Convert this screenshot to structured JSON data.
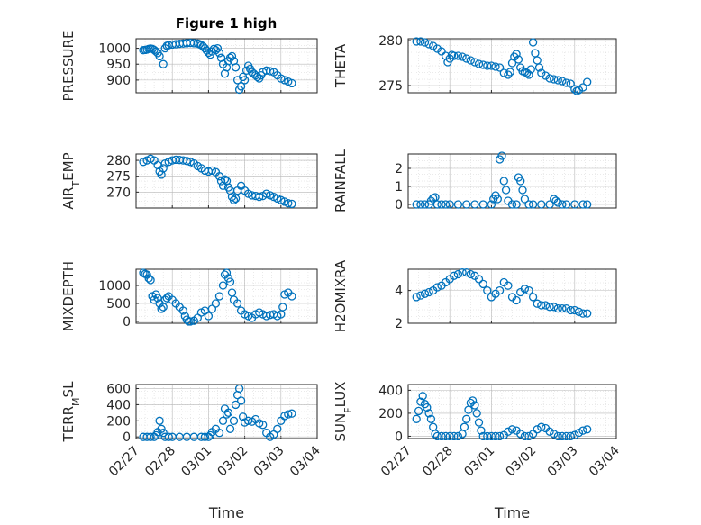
{
  "title": "Figure 1 high",
  "marker_color": "#0072BD",
  "x_tick_labels": [
    "02/27",
    "02/28",
    "03/01",
    "03/02",
    "03/03",
    "03/04"
  ],
  "x_label": "Time",
  "chart_data": [
    {
      "type": "scatter",
      "title": "Figure 1 high",
      "ylabel": "PRESSURE",
      "xlabel": "",
      "ylim": [
        860,
        1030
      ],
      "yticks": [
        900,
        950,
        1000
      ],
      "grid": true,
      "x": [
        0.2,
        0.25,
        0.3,
        0.35,
        0.4,
        0.45,
        0.5,
        0.55,
        0.6,
        0.65,
        0.75,
        0.8,
        0.85,
        0.9,
        1.0,
        1.1,
        1.2,
        1.3,
        1.4,
        1.5,
        1.6,
        1.7,
        1.75,
        1.8,
        1.85,
        1.9,
        1.95,
        2.0,
        2.05,
        2.1,
        2.15,
        2.2,
        2.25,
        2.3,
        2.35,
        2.4,
        2.45,
        2.5,
        2.55,
        2.6,
        2.65,
        2.7,
        2.75,
        2.8,
        2.85,
        2.9,
        2.95,
        3.0,
        3.05,
        3.1,
        3.15,
        3.2,
        3.25,
        3.3,
        3.35,
        3.4,
        3.45,
        3.5,
        3.6,
        3.7,
        3.8,
        3.9,
        4.0,
        4.1,
        4.2,
        4.3
      ],
      "y": [
        994,
        995,
        996,
        998,
        999,
        998,
        995,
        990,
        985,
        975,
        950,
        1000,
        1008,
        1010,
        1012,
        1013,
        1014,
        1015,
        1016,
        1017,
        1016,
        1015,
        1013,
        1010,
        1006,
        1000,
        993,
        986,
        980,
        990,
        998,
        994,
        1000,
        985,
        970,
        950,
        920,
        940,
        960,
        970,
        975,
        960,
        940,
        900,
        870,
        880,
        910,
        900,
        930,
        945,
        935,
        925,
        920,
        915,
        910,
        905,
        915,
        925,
        930,
        928,
        925,
        915,
        905,
        900,
        895,
        890
      ]
    },
    {
      "type": "scatter",
      "title": "",
      "ylabel": "THETA",
      "xlabel": "",
      "ylim": [
        274.2,
        280.2
      ],
      "yticks": [
        275,
        280
      ],
      "grid": true,
      "x": [
        0.2,
        0.3,
        0.4,
        0.5,
        0.6,
        0.7,
        0.8,
        0.9,
        0.95,
        1.0,
        1.05,
        1.1,
        1.2,
        1.3,
        1.4,
        1.5,
        1.6,
        1.7,
        1.8,
        1.9,
        2.0,
        2.1,
        2.2,
        2.3,
        2.4,
        2.45,
        2.5,
        2.55,
        2.6,
        2.65,
        2.7,
        2.75,
        2.8,
        2.85,
        2.9,
        2.95,
        3.0,
        3.05,
        3.1,
        3.15,
        3.2,
        3.3,
        3.4,
        3.5,
        3.6,
        3.7,
        3.8,
        3.9,
        4.0,
        4.05,
        4.1,
        4.2,
        4.3
      ],
      "y": [
        279.9,
        279.9,
        279.8,
        279.6,
        279.4,
        279.1,
        278.8,
        278.3,
        277.6,
        278.0,
        278.4,
        278.3,
        278.3,
        278.2,
        278.0,
        277.8,
        277.6,
        277.4,
        277.3,
        277.2,
        277.2,
        277.1,
        277.0,
        276.4,
        276.2,
        276.5,
        277.5,
        278.2,
        278.5,
        277.9,
        277.0,
        276.6,
        276.5,
        276.4,
        276.2,
        276.8,
        279.8,
        278.6,
        277.8,
        277.0,
        276.4,
        276.1,
        275.8,
        275.7,
        275.6,
        275.5,
        275.3,
        275.2,
        274.6,
        274.4,
        274.5,
        274.8,
        275.4
      ]
    },
    {
      "type": "scatter",
      "title": "",
      "ylabel": "AIR_TEMP",
      "xlabel": "",
      "ylim": [
        265,
        282
      ],
      "yticks": [
        270,
        275,
        280
      ],
      "grid": true,
      "x": [
        0.2,
        0.3,
        0.4,
        0.5,
        0.6,
        0.65,
        0.7,
        0.75,
        0.8,
        0.9,
        1.0,
        1.1,
        1.2,
        1.3,
        1.4,
        1.5,
        1.6,
        1.7,
        1.8,
        1.9,
        2.0,
        2.1,
        2.2,
        2.3,
        2.35,
        2.4,
        2.45,
        2.5,
        2.55,
        2.6,
        2.65,
        2.7,
        2.75,
        2.8,
        2.9,
        3.0,
        3.1,
        3.2,
        3.3,
        3.4,
        3.5,
        3.6,
        3.7,
        3.8,
        3.9,
        4.0,
        4.1,
        4.2,
        4.3
      ],
      "y": [
        279.5,
        280.0,
        280.5,
        280.0,
        278.5,
        276.5,
        275.5,
        277.5,
        279.0,
        279.5,
        280.0,
        280.2,
        280.1,
        280.0,
        279.8,
        279.5,
        279.0,
        278.2,
        277.5,
        276.8,
        276.5,
        276.8,
        276.3,
        275.0,
        273.5,
        272.0,
        274.0,
        273.5,
        271.5,
        270.5,
        268.5,
        267.5,
        268.0,
        270.5,
        272.0,
        270.5,
        269.5,
        269.0,
        268.8,
        268.5,
        268.8,
        269.5,
        269.0,
        268.5,
        268.0,
        267.5,
        267.0,
        266.5,
        266.3
      ]
    },
    {
      "type": "scatter",
      "title": "",
      "ylabel": "RAINFALL",
      "xlabel": "",
      "ylim": [
        -0.2,
        2.8
      ],
      "yticks": [
        0,
        1,
        2
      ],
      "grid": true,
      "x": [
        0.2,
        0.3,
        0.4,
        0.5,
        0.55,
        0.6,
        0.65,
        0.7,
        0.8,
        0.9,
        1.0,
        1.2,
        1.4,
        1.6,
        1.8,
        2.0,
        2.05,
        2.1,
        2.15,
        2.2,
        2.25,
        2.3,
        2.35,
        2.4,
        2.5,
        2.6,
        2.65,
        2.7,
        2.75,
        2.8,
        2.9,
        3.0,
        3.2,
        3.4,
        3.5,
        3.55,
        3.6,
        3.7,
        3.8,
        4.0,
        4.2,
        4.3
      ],
      "y": [
        0,
        0,
        0,
        0,
        0.2,
        0.35,
        0.4,
        0,
        0,
        0,
        0,
        0,
        0,
        0,
        0,
        0,
        0.3,
        0.5,
        0.3,
        2.5,
        2.7,
        1.3,
        0.8,
        0.2,
        0,
        0,
        1.5,
        1.3,
        0.8,
        0.3,
        0,
        0,
        0,
        0,
        0.3,
        0.2,
        0.1,
        0,
        0,
        0,
        0,
        0
      ]
    },
    {
      "type": "scatter",
      "title": "",
      "ylabel": "MIXDEPTH",
      "xlabel": "",
      "ylim": [
        -50,
        1450
      ],
      "yticks": [
        0,
        500,
        1000
      ],
      "grid": true,
      "x": [
        0.2,
        0.25,
        0.3,
        0.35,
        0.4,
        0.45,
        0.5,
        0.55,
        0.6,
        0.65,
        0.7,
        0.75,
        0.8,
        0.85,
        0.9,
        1.0,
        1.1,
        1.2,
        1.3,
        1.35,
        1.4,
        1.45,
        1.5,
        1.6,
        1.7,
        1.8,
        1.9,
        2.0,
        2.1,
        2.2,
        2.3,
        2.4,
        2.45,
        2.5,
        2.55,
        2.6,
        2.65,
        2.7,
        2.8,
        2.9,
        3.0,
        3.1,
        3.2,
        3.3,
        3.4,
        3.5,
        3.6,
        3.7,
        3.8,
        3.9,
        4.0,
        4.05,
        4.1,
        4.2,
        4.3
      ],
      "y": [
        1350,
        1320,
        1300,
        1200,
        1150,
        700,
        600,
        750,
        650,
        500,
        350,
        400,
        600,
        650,
        700,
        600,
        500,
        400,
        300,
        150,
        50,
        0,
        0,
        20,
        100,
        250,
        300,
        150,
        350,
        500,
        700,
        1000,
        1300,
        1350,
        1200,
        1100,
        800,
        600,
        500,
        300,
        200,
        150,
        100,
        200,
        250,
        200,
        150,
        180,
        200,
        150,
        200,
        400,
        750,
        800,
        700
      ]
    },
    {
      "type": "scatter",
      "title": "",
      "ylabel": "H2OMIXRA",
      "xlabel": "",
      "ylim": [
        2,
        5.3
      ],
      "yticks": [
        2,
        4
      ],
      "grid": true,
      "x": [
        0.2,
        0.3,
        0.4,
        0.5,
        0.6,
        0.7,
        0.8,
        0.9,
        1.0,
        1.1,
        1.2,
        1.3,
        1.4,
        1.5,
        1.6,
        1.7,
        1.8,
        1.9,
        2.0,
        2.1,
        2.2,
        2.3,
        2.4,
        2.5,
        2.6,
        2.7,
        2.8,
        2.9,
        3.0,
        3.1,
        3.2,
        3.3,
        3.4,
        3.5,
        3.6,
        3.7,
        3.8,
        3.9,
        4.0,
        4.1,
        4.2,
        4.3
      ],
      "y": [
        3.6,
        3.7,
        3.8,
        3.9,
        4.0,
        4.2,
        4.3,
        4.5,
        4.7,
        4.9,
        5.0,
        5.1,
        5.1,
        5.0,
        4.9,
        4.7,
        4.4,
        4.0,
        3.6,
        3.8,
        4.0,
        4.5,
        4.3,
        3.6,
        3.4,
        3.9,
        4.1,
        4.0,
        3.6,
        3.2,
        3.1,
        3.1,
        3.0,
        3.0,
        2.9,
        2.9,
        2.9,
        2.8,
        2.8,
        2.7,
        2.6,
        2.6
      ]
    },
    {
      "type": "scatter",
      "title": "",
      "ylabel": "TERR_MSL",
      "xlabel": "Time",
      "ylim": [
        -20,
        650
      ],
      "yticks": [
        0,
        200,
        400,
        600
      ],
      "grid": true,
      "x": [
        0.2,
        0.3,
        0.4,
        0.5,
        0.55,
        0.6,
        0.65,
        0.7,
        0.75,
        0.8,
        0.9,
        1.0,
        1.2,
        1.4,
        1.6,
        1.8,
        1.9,
        2.0,
        2.05,
        2.1,
        2.2,
        2.3,
        2.4,
        2.45,
        2.5,
        2.55,
        2.6,
        2.7,
        2.75,
        2.8,
        2.85,
        2.9,
        2.95,
        3.0,
        3.1,
        3.2,
        3.3,
        3.4,
        3.5,
        3.6,
        3.7,
        3.8,
        3.9,
        4.0,
        4.1,
        4.2,
        4.3
      ],
      "y": [
        0,
        0,
        0,
        0,
        20,
        60,
        200,
        100,
        50,
        0,
        0,
        0,
        0,
        0,
        0,
        0,
        0,
        0,
        20,
        60,
        100,
        50,
        200,
        350,
        280,
        300,
        100,
        200,
        400,
        520,
        600,
        450,
        250,
        180,
        200,
        190,
        220,
        170,
        150,
        50,
        0,
        30,
        100,
        200,
        260,
        280,
        290
      ]
    },
    {
      "type": "scatter",
      "title": "",
      "ylabel": "SUN_FLUX",
      "xlabel": "Time",
      "ylim": [
        -20,
        450
      ],
      "yticks": [
        0,
        200,
        400
      ],
      "grid": true,
      "x": [
        0.2,
        0.25,
        0.3,
        0.35,
        0.4,
        0.45,
        0.5,
        0.55,
        0.6,
        0.65,
        0.7,
        0.8,
        0.9,
        1.0,
        1.1,
        1.2,
        1.3,
        1.35,
        1.4,
        1.45,
        1.5,
        1.55,
        1.6,
        1.65,
        1.7,
        1.75,
        1.8,
        1.9,
        2.0,
        2.1,
        2.2,
        2.3,
        2.4,
        2.5,
        2.6,
        2.7,
        2.8,
        2.9,
        3.0,
        3.1,
        3.2,
        3.3,
        3.4,
        3.5,
        3.6,
        3.7,
        3.8,
        3.9,
        4.0,
        4.1,
        4.2,
        4.3
      ],
      "y": [
        150,
        220,
        300,
        350,
        280,
        250,
        200,
        150,
        80,
        20,
        0,
        0,
        0,
        0,
        0,
        0,
        20,
        80,
        150,
        230,
        290,
        310,
        270,
        200,
        120,
        50,
        0,
        0,
        0,
        0,
        0,
        10,
        40,
        60,
        50,
        20,
        0,
        0,
        20,
        60,
        80,
        70,
        40,
        20,
        0,
        0,
        0,
        0,
        10,
        30,
        50,
        60
      ]
    }
  ]
}
